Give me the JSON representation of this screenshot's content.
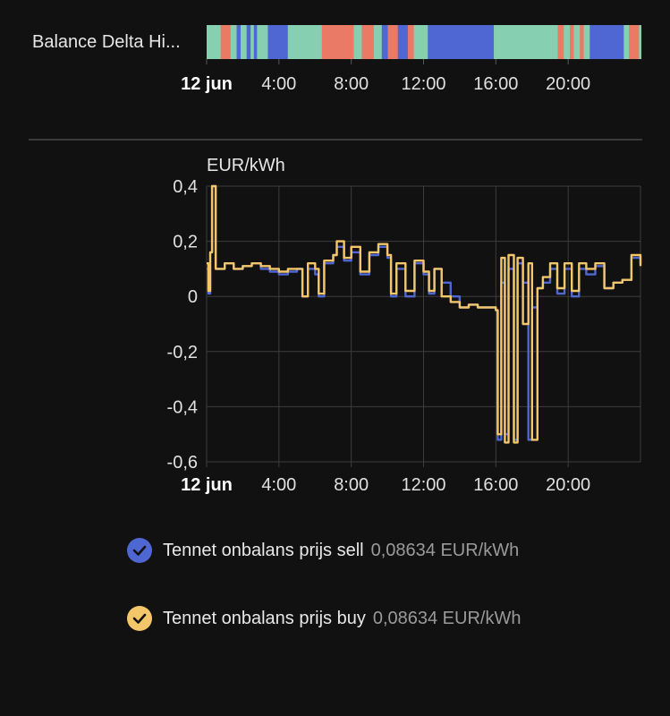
{
  "timeline": {
    "label": "Balance Delta Hi...",
    "colors": {
      "blue": "#4f67d3",
      "green": "#86cfb1",
      "red": "#ea7a66"
    },
    "segments": [
      [
        "green",
        3.5
      ],
      [
        "red",
        2.5
      ],
      [
        "green",
        1.5
      ],
      [
        "blue",
        1
      ],
      [
        "green",
        1.5
      ],
      [
        "blue",
        1
      ],
      [
        "green",
        0.8
      ],
      [
        "blue",
        0.8
      ],
      [
        "green",
        2.7
      ],
      [
        "blue",
        5
      ],
      [
        "green",
        4
      ],
      [
        "green",
        4.5
      ],
      [
        "red",
        8
      ],
      [
        "green",
        2
      ],
      [
        "red",
        3
      ],
      [
        "green",
        2
      ],
      [
        "blue",
        1.5
      ],
      [
        "red",
        2.5
      ],
      [
        "blue",
        2.5
      ],
      [
        "red",
        1.5
      ],
      [
        "green",
        3.5
      ],
      [
        "blue",
        16.5
      ],
      [
        "green",
        16
      ],
      [
        "red",
        1.5
      ],
      [
        "green",
        1.5
      ],
      [
        "red",
        1
      ],
      [
        "green",
        1.5
      ],
      [
        "red",
        1
      ],
      [
        "green",
        1.5
      ],
      [
        "blue",
        8.5
      ],
      [
        "green",
        1.3
      ],
      [
        "red",
        2.5
      ],
      [
        "green",
        0.6
      ]
    ],
    "x_ticks": [
      "12 jun",
      "4:00",
      "8:00",
      "12:00",
      "16:00",
      "20:00"
    ]
  },
  "chart": {
    "unit_label": "EUR/kWh",
    "y_tick_labels": [
      "0,4",
      "0,2",
      "0",
      "-0,2",
      "-0,4",
      "-0,6"
    ],
    "x_tick_labels": [
      "12 jun",
      "4:00",
      "8:00",
      "12:00",
      "16:00",
      "20:00"
    ]
  },
  "chart_data": {
    "type": "line",
    "title": "",
    "xlabel": "",
    "ylabel": "EUR/kWh",
    "ylim": [
      -0.6,
      0.4
    ],
    "xlim": [
      0,
      24
    ],
    "grid": true,
    "x_unit": "hours",
    "series": [
      {
        "name": "Tennet onbalans prijs sell",
        "color": "#4f67d3",
        "points": [
          [
            0,
            0.1
          ],
          [
            0.1,
            0.01
          ],
          [
            0.2,
            0.16
          ],
          [
            0.3,
            0.4
          ],
          [
            0.5,
            0.1
          ],
          [
            1,
            0.12
          ],
          [
            1.5,
            0.1
          ],
          [
            2,
            0.11
          ],
          [
            2.5,
            0.12
          ],
          [
            3,
            0.1
          ],
          [
            3.5,
            0.09
          ],
          [
            4,
            0.08
          ],
          [
            4.5,
            0.09
          ],
          [
            5,
            0.1
          ],
          [
            5.3,
            0.0
          ],
          [
            5.6,
            0.1
          ],
          [
            6,
            0.08
          ],
          [
            6.2,
            0.0
          ],
          [
            6.5,
            0.12
          ],
          [
            7,
            0.15
          ],
          [
            7.2,
            0.18
          ],
          [
            7.6,
            0.13
          ],
          [
            8,
            0.16
          ],
          [
            8.5,
            0.08
          ],
          [
            9,
            0.15
          ],
          [
            9.5,
            0.18
          ],
          [
            10,
            0.14
          ],
          [
            10.2,
            0.0
          ],
          [
            10.5,
            0.1
          ],
          [
            11,
            0.0
          ],
          [
            11.5,
            0.12
          ],
          [
            12,
            0.08
          ],
          [
            12.3,
            0.01
          ],
          [
            12.6,
            0.1
          ],
          [
            13,
            0.05
          ],
          [
            13.5,
            0.0
          ],
          [
            14,
            -0.04
          ],
          [
            14.5,
            -0.03
          ],
          [
            15,
            -0.04
          ],
          [
            15.5,
            -0.04
          ],
          [
            16,
            -0.05
          ],
          [
            16.1,
            -0.52
          ],
          [
            16.3,
            0.05
          ],
          [
            16.5,
            -0.5
          ],
          [
            16.7,
            0.1
          ],
          [
            17,
            -0.52
          ],
          [
            17.2,
            0.12
          ],
          [
            17.5,
            0.05
          ],
          [
            17.8,
            -0.52
          ],
          [
            18,
            -0.04
          ],
          [
            18.3,
            0.03
          ],
          [
            18.6,
            0.05
          ],
          [
            19,
            0.1
          ],
          [
            19.4,
            0.01
          ],
          [
            19.8,
            0.1
          ],
          [
            20.2,
            0.0
          ],
          [
            20.6,
            0.1
          ],
          [
            21,
            0.08
          ],
          [
            21.5,
            0.11
          ],
          [
            22,
            0.03
          ],
          [
            22.5,
            0.05
          ],
          [
            23,
            0.06
          ],
          [
            23.5,
            0.14
          ],
          [
            24,
            0.12
          ]
        ]
      },
      {
        "name": "Tennet onbalans prijs buy",
        "color": "#f4c66a",
        "points": [
          [
            0,
            0.12
          ],
          [
            0.1,
            0.02
          ],
          [
            0.2,
            0.16
          ],
          [
            0.3,
            0.4
          ],
          [
            0.5,
            0.1
          ],
          [
            1,
            0.12
          ],
          [
            1.5,
            0.1
          ],
          [
            2,
            0.11
          ],
          [
            2.5,
            0.12
          ],
          [
            3,
            0.11
          ],
          [
            3.5,
            0.1
          ],
          [
            4,
            0.09
          ],
          [
            4.5,
            0.1
          ],
          [
            5,
            0.1
          ],
          [
            5.3,
            0.0
          ],
          [
            5.6,
            0.12
          ],
          [
            6,
            0.1
          ],
          [
            6.2,
            0.01
          ],
          [
            6.5,
            0.13
          ],
          [
            7,
            0.15
          ],
          [
            7.2,
            0.2
          ],
          [
            7.6,
            0.14
          ],
          [
            8,
            0.18
          ],
          [
            8.5,
            0.09
          ],
          [
            9,
            0.16
          ],
          [
            9.5,
            0.19
          ],
          [
            10,
            0.15
          ],
          [
            10.2,
            0.01
          ],
          [
            10.5,
            0.12
          ],
          [
            11,
            0.02
          ],
          [
            11.5,
            0.13
          ],
          [
            12,
            0.09
          ],
          [
            12.3,
            0.02
          ],
          [
            12.6,
            0.1
          ],
          [
            13,
            0.0
          ],
          [
            13.5,
            -0.02
          ],
          [
            14,
            -0.04
          ],
          [
            14.5,
            -0.03
          ],
          [
            15,
            -0.04
          ],
          [
            15.5,
            -0.04
          ],
          [
            16,
            -0.05
          ],
          [
            16.1,
            -0.5
          ],
          [
            16.3,
            0.14
          ],
          [
            16.5,
            -0.53
          ],
          [
            16.7,
            0.15
          ],
          [
            17,
            -0.53
          ],
          [
            17.2,
            0.14
          ],
          [
            17.5,
            -0.1
          ],
          [
            17.8,
            0.12
          ],
          [
            18,
            -0.52
          ],
          [
            18.3,
            0.03
          ],
          [
            18.6,
            0.07
          ],
          [
            19,
            0.12
          ],
          [
            19.4,
            0.03
          ],
          [
            19.8,
            0.12
          ],
          [
            20.2,
            0.02
          ],
          [
            20.6,
            0.12
          ],
          [
            21,
            0.1
          ],
          [
            21.5,
            0.12
          ],
          [
            22,
            0.03
          ],
          [
            22.5,
            0.05
          ],
          [
            23,
            0.06
          ],
          [
            23.5,
            0.15
          ],
          [
            24,
            0.11
          ]
        ]
      }
    ]
  },
  "legend": [
    {
      "name": "Tennet onbalans prijs sell",
      "value": "0,08634 EUR/kWh",
      "color": "#4f67d3"
    },
    {
      "name": "Tennet onbalans prijs buy",
      "value": "0,08634 EUR/kWh",
      "color": "#f4c66a"
    }
  ]
}
